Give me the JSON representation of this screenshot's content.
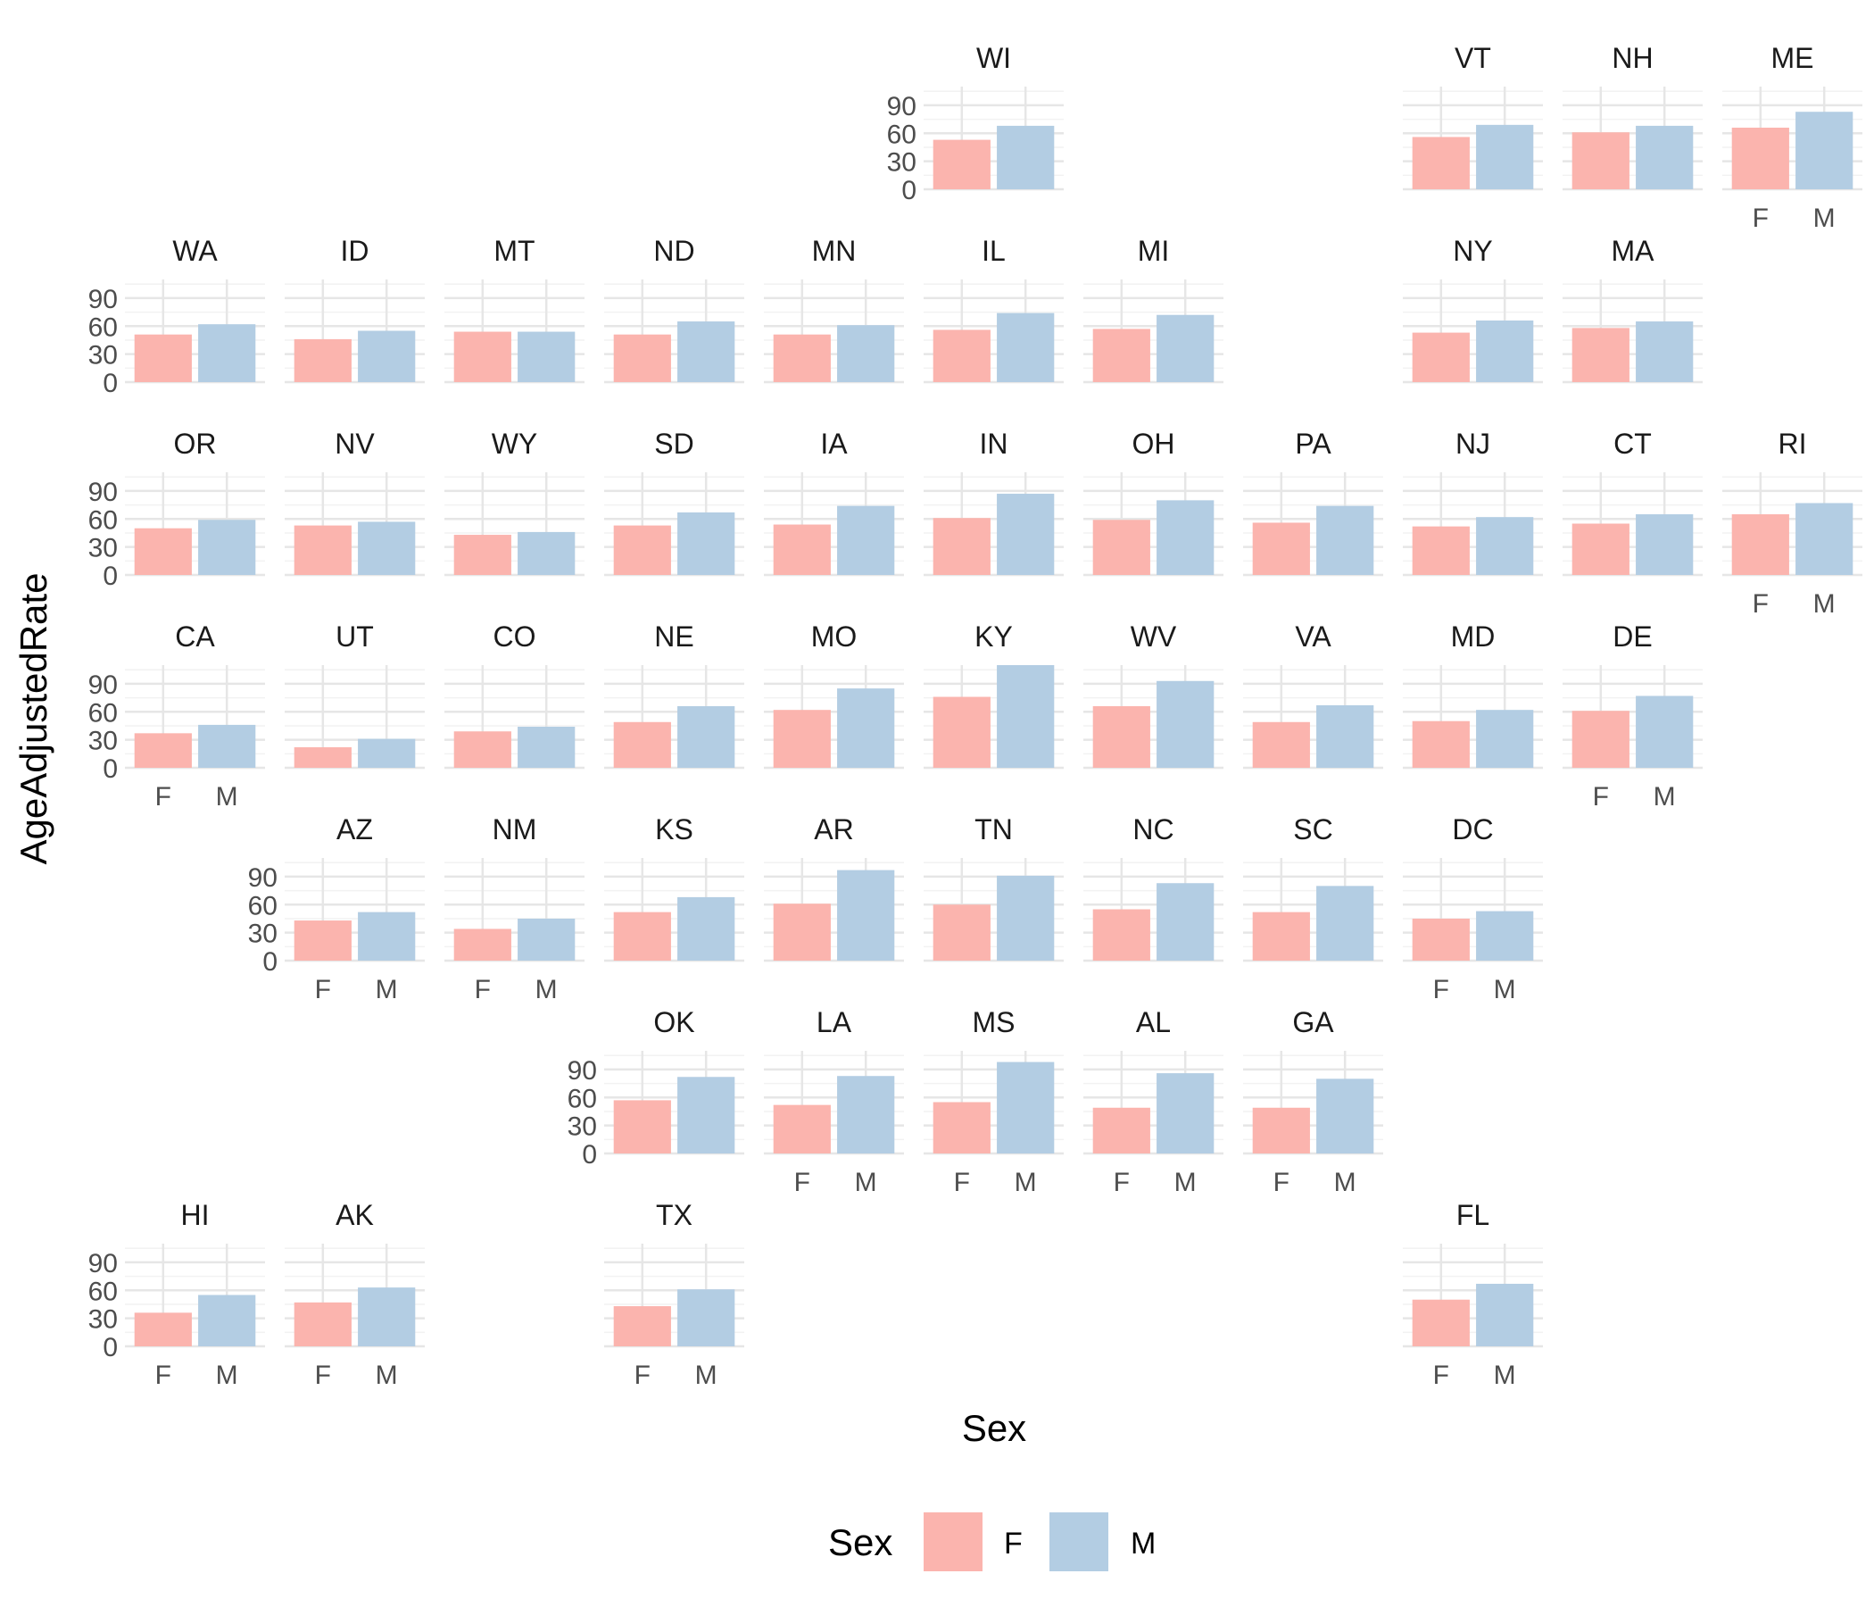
{
  "chart_data": {
    "type": "bar",
    "layout": "geofacet-us-grid",
    "xlabel": "Sex",
    "ylabel": "AgeAdjustedRate",
    "categories": [
      "F",
      "M"
    ],
    "y_ticks": [
      0,
      30,
      60,
      90
    ],
    "ylim": [
      0,
      110
    ],
    "grid": true,
    "legend": {
      "title": "Sex",
      "position": "bottom",
      "entries": [
        {
          "label": "F",
          "color": "#FBB4AE"
        },
        {
          "label": "M",
          "color": "#B3CDE3"
        }
      ]
    },
    "panels": [
      {
        "state": "WI",
        "row": 0,
        "col": 5,
        "values": [
          53,
          68
        ]
      },
      {
        "state": "VT",
        "row": 0,
        "col": 8,
        "values": [
          56,
          69
        ]
      },
      {
        "state": "NH",
        "row": 0,
        "col": 9,
        "values": [
          61,
          68
        ]
      },
      {
        "state": "ME",
        "row": 0,
        "col": 10,
        "values": [
          66,
          83
        ]
      },
      {
        "state": "WA",
        "row": 1,
        "col": 0,
        "values": [
          51,
          62
        ]
      },
      {
        "state": "ID",
        "row": 1,
        "col": 1,
        "values": [
          46,
          55
        ]
      },
      {
        "state": "MT",
        "row": 1,
        "col": 2,
        "values": [
          54,
          54
        ]
      },
      {
        "state": "ND",
        "row": 1,
        "col": 3,
        "values": [
          51,
          65
        ]
      },
      {
        "state": "MN",
        "row": 1,
        "col": 4,
        "values": [
          51,
          61
        ]
      },
      {
        "state": "IL",
        "row": 1,
        "col": 5,
        "values": [
          56,
          74
        ]
      },
      {
        "state": "MI",
        "row": 1,
        "col": 6,
        "values": [
          57,
          72
        ]
      },
      {
        "state": "NY",
        "row": 1,
        "col": 8,
        "values": [
          53,
          66
        ]
      },
      {
        "state": "MA",
        "row": 1,
        "col": 9,
        "values": [
          58,
          65
        ]
      },
      {
        "state": "OR",
        "row": 2,
        "col": 0,
        "values": [
          50,
          59
        ]
      },
      {
        "state": "NV",
        "row": 2,
        "col": 1,
        "values": [
          53,
          57
        ]
      },
      {
        "state": "WY",
        "row": 2,
        "col": 2,
        "values": [
          43,
          46
        ]
      },
      {
        "state": "SD",
        "row": 2,
        "col": 3,
        "values": [
          53,
          67
        ]
      },
      {
        "state": "IA",
        "row": 2,
        "col": 4,
        "values": [
          54,
          74
        ]
      },
      {
        "state": "IN",
        "row": 2,
        "col": 5,
        "values": [
          61,
          87
        ]
      },
      {
        "state": "OH",
        "row": 2,
        "col": 6,
        "values": [
          59,
          80
        ]
      },
      {
        "state": "PA",
        "row": 2,
        "col": 7,
        "values": [
          56,
          74
        ]
      },
      {
        "state": "NJ",
        "row": 2,
        "col": 8,
        "values": [
          52,
          62
        ]
      },
      {
        "state": "CT",
        "row": 2,
        "col": 9,
        "values": [
          55,
          65
        ]
      },
      {
        "state": "RI",
        "row": 2,
        "col": 10,
        "values": [
          65,
          77
        ]
      },
      {
        "state": "CA",
        "row": 3,
        "col": 0,
        "values": [
          37,
          46
        ]
      },
      {
        "state": "UT",
        "row": 3,
        "col": 1,
        "values": [
          22,
          31
        ]
      },
      {
        "state": "CO",
        "row": 3,
        "col": 2,
        "values": [
          39,
          44
        ]
      },
      {
        "state": "NE",
        "row": 3,
        "col": 3,
        "values": [
          49,
          66
        ]
      },
      {
        "state": "MO",
        "row": 3,
        "col": 4,
        "values": [
          62,
          85
        ]
      },
      {
        "state": "KY",
        "row": 3,
        "col": 5,
        "values": [
          76,
          110
        ]
      },
      {
        "state": "WV",
        "row": 3,
        "col": 6,
        "values": [
          66,
          93
        ]
      },
      {
        "state": "VA",
        "row": 3,
        "col": 7,
        "values": [
          49,
          67
        ]
      },
      {
        "state": "MD",
        "row": 3,
        "col": 8,
        "values": [
          50,
          62
        ]
      },
      {
        "state": "DE",
        "row": 3,
        "col": 9,
        "values": [
          61,
          77
        ]
      },
      {
        "state": "AZ",
        "row": 4,
        "col": 1,
        "values": [
          43,
          52
        ]
      },
      {
        "state": "NM",
        "row": 4,
        "col": 2,
        "values": [
          34,
          45
        ]
      },
      {
        "state": "KS",
        "row": 4,
        "col": 3,
        "values": [
          52,
          68
        ]
      },
      {
        "state": "AR",
        "row": 4,
        "col": 4,
        "values": [
          61,
          97
        ]
      },
      {
        "state": "TN",
        "row": 4,
        "col": 5,
        "values": [
          60,
          91
        ]
      },
      {
        "state": "NC",
        "row": 4,
        "col": 6,
        "values": [
          55,
          83
        ]
      },
      {
        "state": "SC",
        "row": 4,
        "col": 7,
        "values": [
          52,
          80
        ]
      },
      {
        "state": "DC",
        "row": 4,
        "col": 8,
        "values": [
          45,
          53
        ]
      },
      {
        "state": "OK",
        "row": 5,
        "col": 3,
        "values": [
          57,
          82
        ]
      },
      {
        "state": "LA",
        "row": 5,
        "col": 4,
        "values": [
          52,
          83
        ]
      },
      {
        "state": "MS",
        "row": 5,
        "col": 5,
        "values": [
          55,
          98
        ]
      },
      {
        "state": "AL",
        "row": 5,
        "col": 6,
        "values": [
          49,
          86
        ]
      },
      {
        "state": "GA",
        "row": 5,
        "col": 7,
        "values": [
          49,
          80
        ]
      },
      {
        "state": "HI",
        "row": 6,
        "col": 0,
        "values": [
          36,
          55
        ]
      },
      {
        "state": "AK",
        "row": 6,
        "col": 1,
        "values": [
          47,
          63
        ]
      },
      {
        "state": "TX",
        "row": 6,
        "col": 3,
        "values": [
          43,
          61
        ]
      },
      {
        "state": "FL",
        "row": 6,
        "col": 8,
        "values": [
          50,
          67
        ]
      }
    ]
  }
}
